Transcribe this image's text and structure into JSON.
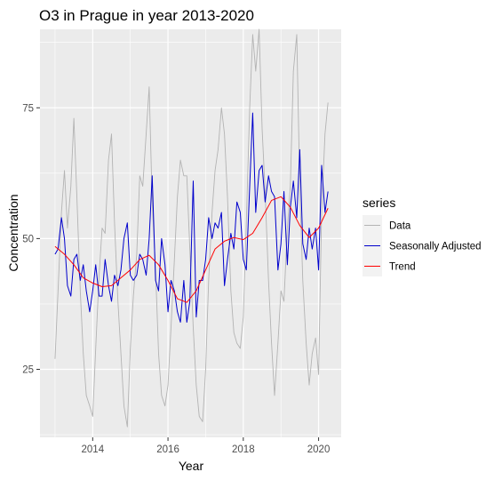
{
  "chart_data": {
    "type": "line",
    "title": "O3 in Prague in year 2013-2020",
    "xlabel": "Year",
    "ylabel": "Concentration",
    "xlim": [
      2012.6,
      2020.6
    ],
    "ylim": [
      12,
      90
    ],
    "x_ticks": [
      2014,
      2016,
      2018,
      2020
    ],
    "y_ticks": [
      25,
      50,
      75
    ],
    "x_tick_labels": [
      "2014",
      "2016",
      "2018",
      "2020"
    ],
    "y_tick_labels": [
      "25",
      "50",
      "75"
    ],
    "grid": true,
    "legend": {
      "title": "series",
      "position": "right"
    },
    "series": [
      {
        "name": "Data",
        "color": "#b3b3b3",
        "x": [
          2013.0,
          2013.08,
          2013.17,
          2013.25,
          2013.33,
          2013.42,
          2013.5,
          2013.58,
          2013.67,
          2013.75,
          2013.83,
          2013.92,
          2014.0,
          2014.08,
          2014.17,
          2014.25,
          2014.33,
          2014.42,
          2014.5,
          2014.58,
          2014.67,
          2014.75,
          2014.83,
          2014.92,
          2015.0,
          2015.08,
          2015.17,
          2015.25,
          2015.33,
          2015.42,
          2015.5,
          2015.58,
          2015.67,
          2015.75,
          2015.83,
          2015.92,
          2016.0,
          2016.08,
          2016.17,
          2016.25,
          2016.33,
          2016.42,
          2016.5,
          2016.58,
          2016.67,
          2016.75,
          2016.83,
          2016.92,
          2017.0,
          2017.08,
          2017.17,
          2017.25,
          2017.33,
          2017.42,
          2017.5,
          2017.58,
          2017.67,
          2017.75,
          2017.83,
          2017.92,
          2018.0,
          2018.08,
          2018.17,
          2018.25,
          2018.33,
          2018.42,
          2018.5,
          2018.58,
          2018.67,
          2018.75,
          2018.83,
          2018.92,
          2019.0,
          2019.08,
          2019.17,
          2019.25,
          2019.33,
          2019.42,
          2019.5,
          2019.58,
          2019.67,
          2019.75,
          2019.83,
          2019.92,
          2020.0,
          2020.08,
          2020.17,
          2020.25
        ],
        "values": [
          27,
          40,
          55,
          63,
          52,
          60,
          73,
          58,
          40,
          28,
          20,
          18,
          16,
          29,
          43,
          52,
          51,
          65,
          70,
          53,
          38,
          28,
          18,
          14,
          29,
          39,
          47,
          62,
          60,
          70,
          79,
          57,
          44,
          28,
          20,
          18,
          22,
          33,
          46,
          58,
          65,
          62,
          62,
          48,
          33,
          22,
          16,
          15,
          25,
          42,
          55,
          63,
          67,
          75,
          70,
          58,
          40,
          32,
          30,
          29,
          35,
          53,
          75,
          89,
          82,
          90,
          71,
          59,
          42,
          30,
          20,
          30,
          40,
          38,
          52,
          60,
          82,
          89,
          60,
          42,
          30,
          22,
          28,
          31,
          24,
          55,
          70,
          76
        ]
      },
      {
        "name": "Seasonally Adjusted",
        "color": "#0000cc",
        "x": [
          2013.0,
          2013.08,
          2013.17,
          2013.25,
          2013.33,
          2013.42,
          2013.5,
          2013.58,
          2013.67,
          2013.75,
          2013.83,
          2013.92,
          2014.0,
          2014.08,
          2014.17,
          2014.25,
          2014.33,
          2014.42,
          2014.5,
          2014.58,
          2014.67,
          2014.75,
          2014.83,
          2014.92,
          2015.0,
          2015.08,
          2015.17,
          2015.25,
          2015.33,
          2015.42,
          2015.5,
          2015.58,
          2015.67,
          2015.75,
          2015.83,
          2015.92,
          2016.0,
          2016.08,
          2016.17,
          2016.25,
          2016.33,
          2016.42,
          2016.5,
          2016.58,
          2016.67,
          2016.75,
          2016.83,
          2016.92,
          2017.0,
          2017.08,
          2017.17,
          2017.25,
          2017.33,
          2017.42,
          2017.5,
          2017.58,
          2017.67,
          2017.75,
          2017.83,
          2017.92,
          2018.0,
          2018.08,
          2018.17,
          2018.25,
          2018.33,
          2018.42,
          2018.5,
          2018.58,
          2018.67,
          2018.75,
          2018.83,
          2018.92,
          2019.0,
          2019.08,
          2019.17,
          2019.25,
          2019.33,
          2019.42,
          2019.5,
          2019.58,
          2019.67,
          2019.75,
          2019.83,
          2019.92,
          2020.0,
          2020.08,
          2020.17,
          2020.25
        ],
        "values": [
          47,
          48,
          54,
          50,
          41,
          39,
          46,
          47,
          42,
          45,
          40,
          36,
          40,
          45,
          39,
          39,
          46,
          41,
          38,
          43,
          41,
          44,
          50,
          53,
          43,
          42,
          43,
          47,
          46,
          43,
          50,
          62,
          42,
          40,
          50,
          45,
          36,
          42,
          40,
          36,
          34,
          42,
          34,
          38,
          61,
          35,
          42,
          42,
          46,
          54,
          50,
          53,
          52,
          55,
          41,
          46,
          51,
          48,
          57,
          55,
          46,
          44,
          60,
          74,
          55,
          63,
          64,
          57,
          62,
          59,
          58,
          44,
          49,
          59,
          45,
          56,
          61,
          54,
          67,
          49,
          46,
          52,
          48,
          52,
          44,
          64,
          55,
          59
        ]
      },
      {
        "name": "Trend",
        "color": "#ff0000",
        "x": [
          2013.0,
          2013.25,
          2013.5,
          2013.75,
          2014.0,
          2014.25,
          2014.5,
          2014.75,
          2015.0,
          2015.25,
          2015.5,
          2015.75,
          2016.0,
          2016.25,
          2016.5,
          2016.75,
          2017.0,
          2017.25,
          2017.5,
          2017.75,
          2018.0,
          2018.25,
          2018.5,
          2018.75,
          2019.0,
          2019.25,
          2019.5,
          2019.75,
          2020.0,
          2020.25
        ],
        "values": [
          48.5,
          47,
          45,
          42.5,
          41.5,
          40.8,
          41,
          42.5,
          44,
          46,
          46.8,
          45,
          42,
          38.5,
          37.8,
          40,
          44,
          48,
          49.5,
          50.2,
          49.8,
          51,
          54,
          57.3,
          58,
          56,
          52.5,
          50.2,
          52,
          55.8
        ]
      }
    ]
  }
}
